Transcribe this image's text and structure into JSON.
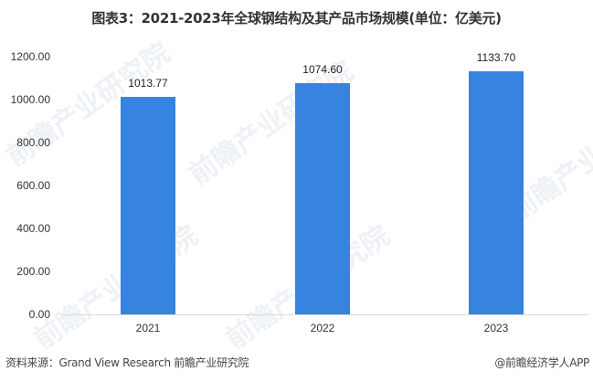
{
  "title": "图表3：2021-2023年全球钢结构及其产品市场规模(单位：亿美元)",
  "chart_data": {
    "type": "bar",
    "title": "图表3：2021-2023年全球钢结构及其产品市场规模(单位：亿美元)",
    "categories": [
      "2021",
      "2022",
      "2023"
    ],
    "values": [
      1013.77,
      1074.6,
      1133.7
    ],
    "value_labels": [
      "1013.77",
      "1074.60",
      "1133.70"
    ],
    "xlabel": "",
    "ylabel": "亿美元",
    "ylim": [
      0,
      1200
    ],
    "yticks": [
      "0.00",
      "200.00",
      "400.00",
      "600.00",
      "800.00",
      "1000.00",
      "1200.00"
    ],
    "grid": false,
    "legend": null,
    "bar_color": "#3683e0"
  },
  "footer": {
    "source": "资料来源：Grand View Research 前瞻产业研究院",
    "brand": "@前瞻经济学人APP"
  },
  "watermark": "前瞻产业研究院"
}
